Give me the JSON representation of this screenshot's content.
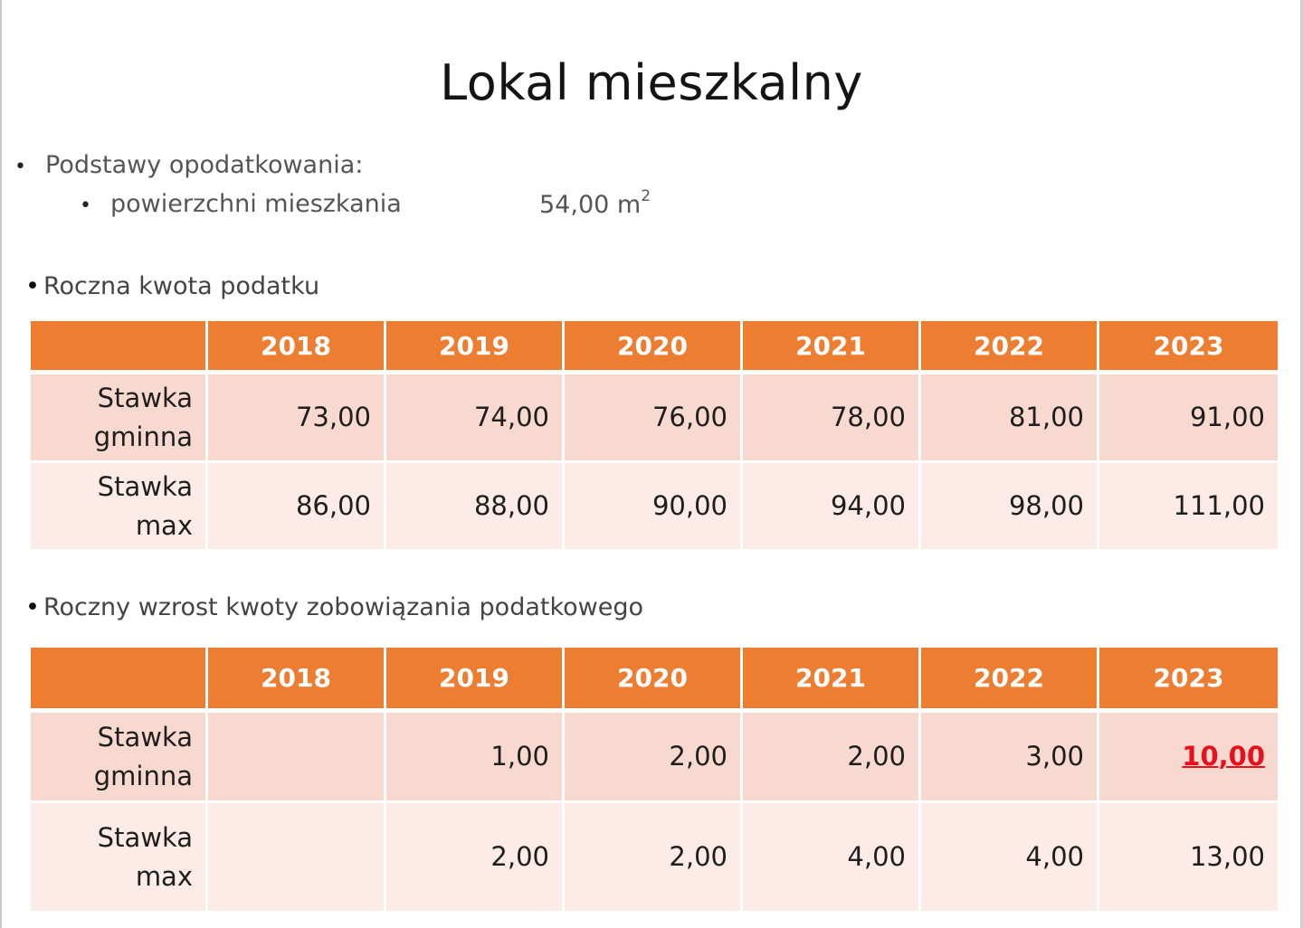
{
  "title": "Lokal mieszkalny",
  "bases": {
    "heading": "Podstawy opodatkowania:",
    "item_label": "powierzchni mieszkania",
    "item_value": "54,00 m",
    "item_unit_sup": "2"
  },
  "section1": {
    "label": "Roczna kwota podatku",
    "years": [
      "2018",
      "2019",
      "2020",
      "2021",
      "2022",
      "2023"
    ],
    "rows": [
      {
        "label_line1": "Stawka",
        "label_line2": "gminna",
        "values": [
          "73,00",
          "74,00",
          "76,00",
          "78,00",
          "81,00",
          "91,00"
        ]
      },
      {
        "label_line1": "Stawka",
        "label_line2": "max",
        "values": [
          "86,00",
          "88,00",
          "90,00",
          "94,00",
          "98,00",
          "111,00"
        ]
      }
    ]
  },
  "section2": {
    "label": "Roczny wzrost kwoty zobowiązania podatkowego",
    "years": [
      "2018",
      "2019",
      "2020",
      "2021",
      "2022",
      "2023"
    ],
    "rows": [
      {
        "label_line1": "Stawka",
        "label_line2": "gminna",
        "values": [
          "",
          "1,00",
          "2,00",
          "2,00",
          "3,00",
          "10,00"
        ]
      },
      {
        "label_line1": "Stawka",
        "label_line2": "max",
        "values": [
          "",
          "2,00",
          "2,00",
          "4,00",
          "4,00",
          "13,00"
        ]
      }
    ],
    "highlight_color": "#e8101c"
  },
  "colors": {
    "header_orange": "#ed7d31",
    "row_dark": "#f8d9cf",
    "row_light": "#fcebe6"
  }
}
